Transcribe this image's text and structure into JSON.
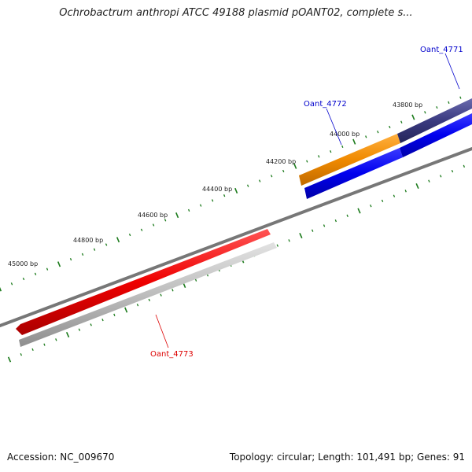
{
  "title": "Ochrobactrum anthropi ATCC 49188 plasmid pOANT02, complete s...",
  "footer": {
    "accession": "Accession: NC_009670",
    "summary": "Topology: circular; Length: 101,491 bp; Genes: 91"
  },
  "ticks": [
    {
      "label": "43800 bp"
    },
    {
      "label": "44000 bp"
    },
    {
      "label": "44200 bp"
    },
    {
      "label": "44400 bp"
    },
    {
      "label": "44600 bp"
    },
    {
      "label": "44800 bp"
    },
    {
      "label": "45000 bp"
    }
  ],
  "genes": [
    {
      "name": "Oant_4771",
      "color": "#0000cc"
    },
    {
      "name": "Oant_4772",
      "color": "#0000cc"
    },
    {
      "name": "Oant_4773",
      "color": "#dd0000"
    }
  ],
  "colors": {
    "backbone": "#777777",
    "tick": "#1a7a1a",
    "orange_feature": "#f08a00",
    "navy_feature": "#3a3a80",
    "blue_feature": "#0000ee",
    "red_feature": "#ee0000",
    "grey_feature": "#b8b8b8"
  }
}
